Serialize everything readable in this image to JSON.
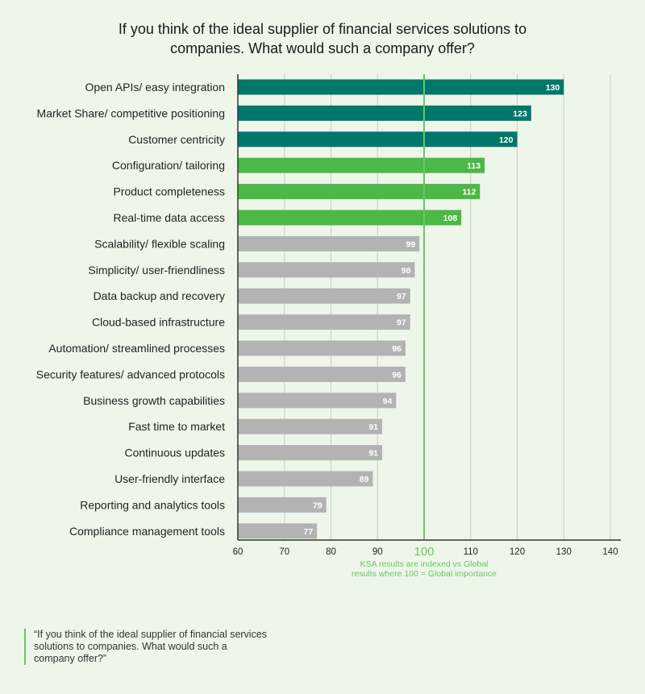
{
  "chart_data": {
    "type": "bar",
    "orientation": "horizontal",
    "title": "If you think of the ideal supplier of financial services solutions to companies. What would such a company offer?",
    "categories": [
      "Open APIs/ easy integration",
      "Market Share/ competitive positioning",
      "Customer centricity",
      "Configuration/ tailoring",
      "Product completeness",
      "Real-time data access",
      "Scalability/ flexible scaling",
      "Simplicity/ user-friendliness",
      "Data backup and recovery",
      "Cloud-based infrastructure",
      "Automation/ streamlined processes",
      "Security features/ advanced protocols",
      "Business growth capabilities",
      "Fast time to market",
      "Continuous updates",
      "User-friendly interface",
      "Reporting and analytics tools",
      "Compliance management tools"
    ],
    "values": [
      130,
      123,
      120,
      113,
      112,
      108,
      99,
      98,
      97,
      97,
      96,
      96,
      94,
      91,
      91,
      89,
      79,
      77
    ],
    "xlim": [
      60,
      140
    ],
    "xticks": [
      60,
      70,
      80,
      90,
      100,
      110,
      120,
      130,
      140
    ],
    "reference_line": 100,
    "xlabel": "KSA results are indexed vs Global results where 100 = Global importance",
    "grid": true,
    "colors": {
      "top": "#00776b",
      "high": "#4cb847",
      "other": "#b3b3b3",
      "reference": "#6cc463"
    }
  },
  "footnote": "“If you think of the ideal supplier of financial services solutions to companies. What would such a company offer?”"
}
